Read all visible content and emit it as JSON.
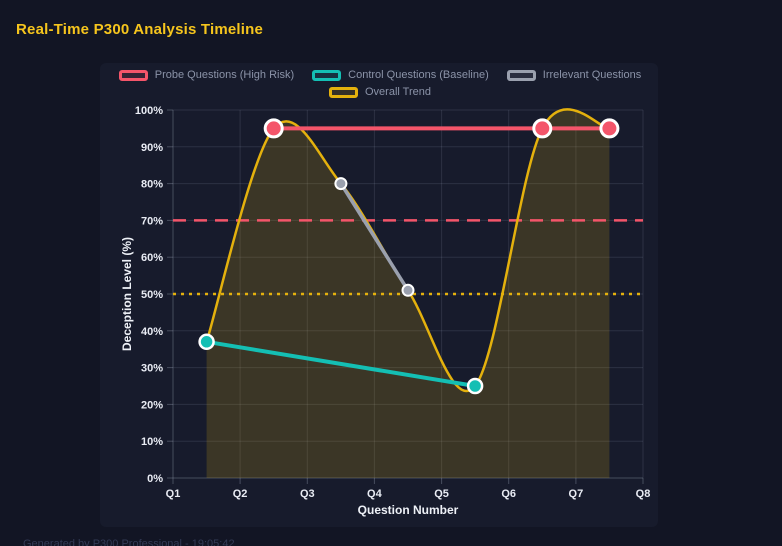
{
  "header": {
    "title": "Real-Time P300 Analysis Timeline"
  },
  "footer": {
    "text": "Generated by P300 Professional - 19:05:42"
  },
  "colors": {
    "background": "#121524",
    "panel": "#171b2c",
    "title": "#f6c51d",
    "axis_text": "#e9ecf4",
    "legend_text": "#8b93a8",
    "grid": "rgba(170,180,200,0.15)",
    "axis_border": "rgba(170,180,200,0.32)",
    "point_border": "#ffffff"
  },
  "chart_data": {
    "type": "line",
    "title": "Real-Time P300 Analysis Timeline",
    "xlabel": "Question Number",
    "ylabel": "Deception Level (%)",
    "x_ticks": [
      "Q1",
      "Q2",
      "Q3",
      "Q4",
      "Q5",
      "Q6",
      "Q7",
      "Q8"
    ],
    "y_ticks": [
      "0%",
      "10%",
      "20%",
      "30%",
      "40%",
      "50%",
      "60%",
      "70%",
      "80%",
      "90%",
      "100%"
    ],
    "xlim": [
      1,
      8
    ],
    "ylim": [
      0,
      100
    ],
    "grid": true,
    "legend_position": "top",
    "series": [
      {
        "name": "Probe Questions (High Risk)",
        "slug": "probe",
        "color": "#f4556a",
        "points": [
          [
            2.5,
            95
          ],
          [
            6.5,
            95
          ],
          [
            7.5,
            95
          ]
        ],
        "line_width": 4,
        "point_radius": 8.5,
        "point_border_width": 3,
        "smooth": false,
        "fill": false
      },
      {
        "name": "Control Questions (Baseline)",
        "slug": "control",
        "color": "#14bfb4",
        "points": [
          [
            1.5,
            37
          ],
          [
            5.5,
            25
          ]
        ],
        "line_width": 4,
        "point_radius": 7,
        "point_border_width": 2.5,
        "smooth": false,
        "fill": false
      },
      {
        "name": "Irrelevant Questions",
        "slug": "irrelevant",
        "color": "#9aa0ae",
        "points": [
          [
            3.5,
            80
          ],
          [
            4.5,
            51
          ]
        ],
        "line_width": 3.5,
        "point_radius": 5.5,
        "point_border_width": 2,
        "smooth": false,
        "fill": false
      },
      {
        "name": "Overall Trend",
        "slug": "trend",
        "color": "#e4b10d",
        "points": [
          [
            1.5,
            37
          ],
          [
            2.5,
            95
          ],
          [
            3.5,
            80
          ],
          [
            4.5,
            51
          ],
          [
            5.5,
            25
          ],
          [
            6.5,
            95
          ],
          [
            7.5,
            95
          ]
        ],
        "line_width": 2.5,
        "point_radius": 0,
        "point_border_width": 0,
        "smooth": true,
        "fill": true,
        "fill_color": "rgba(228,177,13,0.18)"
      }
    ],
    "thresholds": [
      {
        "value": 70,
        "color": "#f4556a",
        "dash": "13 8",
        "width": 2.5
      },
      {
        "value": 50,
        "color": "#e4b10d",
        "dash": "3 5",
        "width": 2.5
      }
    ]
  }
}
